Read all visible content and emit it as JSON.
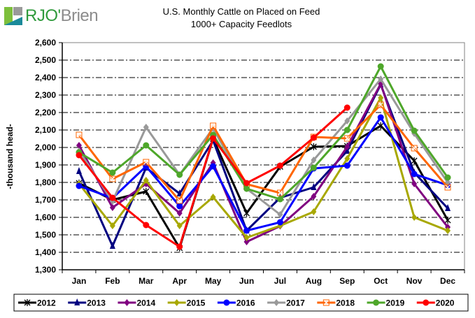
{
  "logo": {
    "part1": "RJO'",
    "part2": "Brien"
  },
  "chart_data": {
    "type": "line",
    "title": "U.S. Monthly Cattle on Placed on Feed",
    "subtitle": "1000+ Capacity Feedlots",
    "xlabel": "",
    "ylabel": "-thousand head-",
    "ylim": [
      1300,
      2600
    ],
    "ytick_step": 100,
    "yticks": [
      "1,300",
      "1,400",
      "1,500",
      "1,600",
      "1,700",
      "1,800",
      "1,900",
      "2,000",
      "2,100",
      "2,200",
      "2,300",
      "2,400",
      "2,500",
      "2,600"
    ],
    "grid": true,
    "legend_placement": "bottom",
    "categories": [
      "Jan",
      "Feb",
      "Mar",
      "Apr",
      "May",
      "Jun",
      "Jul",
      "Aug",
      "Sep",
      "Oct",
      "Nov",
      "Dec"
    ],
    "series": [
      {
        "name": "2012",
        "color": "#000000",
        "marker": "star",
        "values": [
          1796,
          1700,
          1748,
          1425,
          2050,
          1624,
          1890,
          2004,
          2008,
          2124,
          1924,
          1584
        ]
      },
      {
        "name": "2013",
        "color": "#000080",
        "marker": "triangle",
        "values": [
          1864,
          1436,
          1884,
          1736,
          2040,
          1524,
          1712,
          1772,
          1980,
          2360,
          1856,
          1652
        ]
      },
      {
        "name": "2014",
        "color": "#800080",
        "marker": "diamond",
        "values": [
          2012,
          1656,
          1792,
          1624,
          1912,
          1460,
          1550,
          1720,
          2004,
          2364,
          1792,
          1544
        ]
      },
      {
        "name": "2015",
        "color": "#a8a800",
        "marker": "diamond",
        "values": [
          1792,
          1552,
          1812,
          1552,
          1716,
          1484,
          1552,
          1632,
          1936,
          2284,
          1600,
          1524
        ]
      },
      {
        "name": "2016",
        "color": "#0000ff",
        "marker": "circle",
        "values": [
          1780,
          1710,
          1892,
          1664,
          1892,
          1524,
          1572,
          1880,
          1896,
          2172,
          1848,
          1784
        ]
      },
      {
        "name": "2017",
        "color": "#999999",
        "marker": "diamond",
        "values": [
          1980,
          1692,
          2116,
          1844,
          2110,
          1764,
          1616,
          1928,
          2152,
          2392,
          2080,
          1800
        ]
      },
      {
        "name": "2018",
        "color": "#ff6600",
        "marker": "x",
        "values": [
          2072,
          1820,
          1916,
          1696,
          2124,
          1790,
          1740,
          2060,
          2052,
          2244,
          1996,
          1772
        ]
      },
      {
        "name": "2019",
        "color": "#4ea72a",
        "marker": "circle",
        "values": [
          1972,
          1856,
          2012,
          1844,
          2072,
          1764,
          1704,
          1884,
          2100,
          2464,
          2096,
          1828
        ]
      },
      {
        "name": "2020",
        "color": "#ff0000",
        "marker": "circle",
        "values": [
          1956,
          1712,
          1556,
          1432,
          2052,
          1796,
          1896,
          2056,
          2228,
          null,
          null,
          null
        ]
      }
    ]
  }
}
